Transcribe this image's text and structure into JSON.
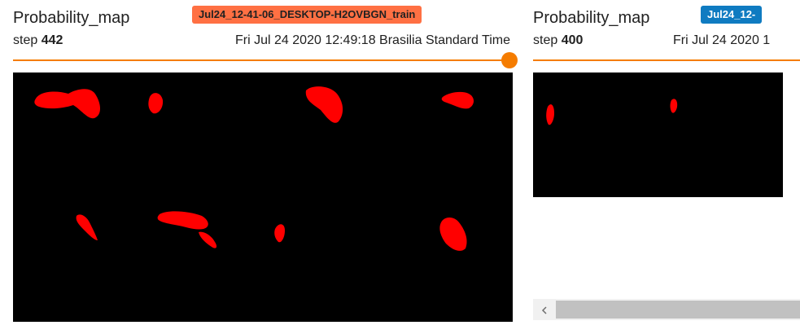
{
  "colors": {
    "accent_orange": "#f57c00",
    "run_tag_left_bg": "#ff7043",
    "run_tag_right_bg": "#0f7bc1",
    "mask_red": "#ff0000"
  },
  "cards": [
    {
      "title": "Probability_map",
      "run_tag": "Jul24_12-41-06_DESKTOP-H2OVBGN_train",
      "step_label": "step",
      "step_value": "442",
      "timestamp": "Fri Jul 24 2020 12:49:18 Brasilia Standard Time",
      "slider_value_fraction": 1.0
    },
    {
      "title": "Probability_map",
      "run_tag": "Jul24_12-",
      "step_label": "step",
      "step_value": "400",
      "timestamp": "Fri Jul 24 2020 1"
    }
  ],
  "scrollbar": {
    "left_arrow_icon": "chevron-left-icon"
  }
}
